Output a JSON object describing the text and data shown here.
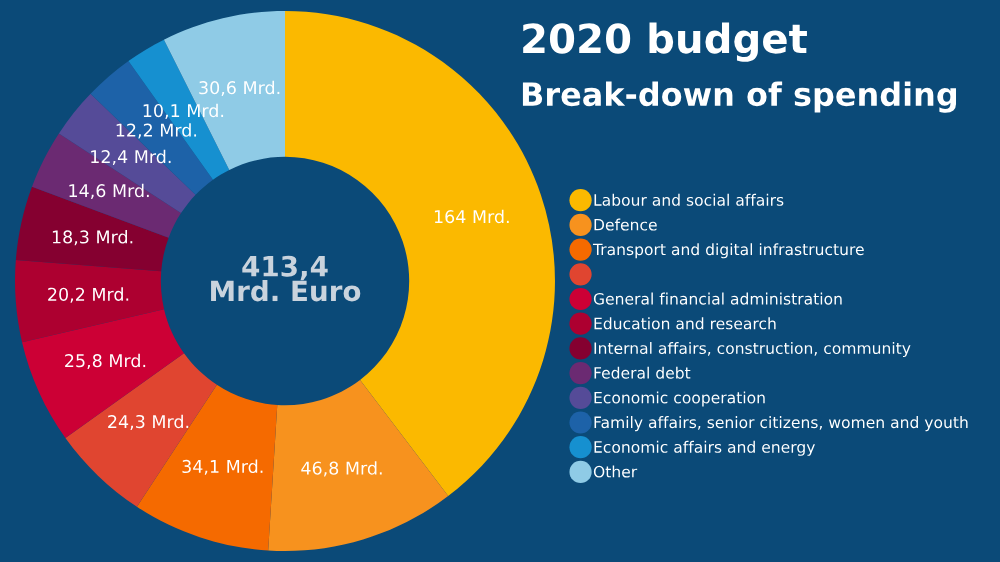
{
  "chart_data": {
    "type": "donut",
    "title": "2020 budget",
    "subtitle": "Break-down of spending",
    "annotations": [
      "413,4\nMrd. Euro"
    ],
    "categories": [
      "Labour and social affairs",
      "Defence",
      "Transport and digital infrastructure",
      null,
      "General financial administration",
      "Education and research",
      "Internal affairs, construction, community",
      "Federal debt",
      "Economic cooperation",
      "Family affairs, senior citizens, women and youth",
      "Economic affairs and energy",
      "Other"
    ],
    "values": [
      164,
      46.8,
      34.1,
      24.3,
      25.8,
      20.2,
      18.3,
      14.6,
      12.4,
      12.2,
      10.1,
      30.6
    ],
    "value_labels": [
      "164 Mrd.",
      "46,8 Mrd.",
      "34,1 Mrd.",
      "24,3 Mrd.",
      "25,8 Mrd.",
      "20,2 Mrd.",
      "18,3 Mrd.",
      "14,6 Mrd.",
      "12,4 Mrd.",
      "12,2 Mrd.",
      "10,1 Mrd.",
      "30,6 Mrd."
    ],
    "colors": [
      "#fbb900",
      "#f7921e",
      "#f56a00",
      "#e04530",
      "#cc0035",
      "#ad0030",
      "#850030",
      "#6b2a72",
      "#554b98",
      "#1d62a8",
      "#1690d0",
      "#8fcbe6"
    ],
    "legend": "right"
  }
}
